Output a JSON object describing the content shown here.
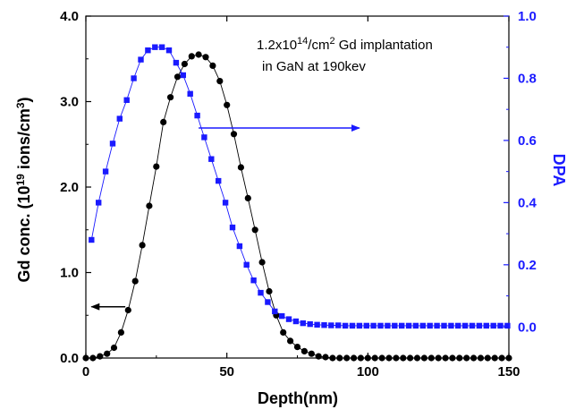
{
  "chart_data": {
    "type": "scatter",
    "annotation": {
      "line1_prefix": "1.2x10",
      "line1_exp": "14",
      "line1_mid": "/cm",
      "line1_exp2": "2",
      "line1_suffix": " Gd implantation",
      "line2": "in GaN at 190kev"
    },
    "xlabel": "Depth(nm)",
    "ylabel_left": {
      "prefix": "Gd conc. (10",
      "exp": "19",
      "mid": " ions/cm",
      "exp2": "3",
      "suffix": ")"
    },
    "ylabel_right": "DPA",
    "xlim": [
      0,
      150
    ],
    "ylim_left": [
      0,
      4
    ],
    "ylim_right": [
      -0.1,
      1.0
    ],
    "x_ticks": [
      "0",
      "50",
      "100",
      "150"
    ],
    "y_left_ticks": [
      "0.0",
      "1.0",
      "2.0",
      "3.0",
      "4.0"
    ],
    "y_right_ticks": [
      "0.0",
      "0.2",
      "0.4",
      "0.6",
      "0.8",
      "1.0"
    ],
    "colors": {
      "gd": "#000000",
      "dpa": "#1a1aff",
      "axis": "#000000",
      "right_axis": "#1a1aff"
    },
    "series": [
      {
        "name": "Gd conc.",
        "axis": "left",
        "marker": "circle",
        "x": [
          0,
          2.5,
          5,
          7.5,
          10,
          12.5,
          15,
          17.5,
          20,
          22.5,
          25,
          27.5,
          30,
          32.5,
          35,
          37.5,
          40,
          42.5,
          45,
          47.5,
          50,
          52.5,
          55,
          57.5,
          60,
          62.5,
          65,
          67.5,
          70,
          72.5,
          75,
          77.5,
          80,
          82.5,
          85,
          87.5,
          90,
          92.5,
          95,
          97.5,
          100,
          102.5,
          105,
          107.5,
          110,
          112.5,
          115,
          117.5,
          120,
          122.5,
          125,
          127.5,
          130,
          132.5,
          135,
          137.5,
          140,
          142.5,
          145,
          147.5,
          150
        ],
        "y": [
          0.0,
          0.0,
          0.02,
          0.05,
          0.12,
          0.3,
          0.56,
          0.9,
          1.32,
          1.78,
          2.24,
          2.76,
          3.05,
          3.29,
          3.44,
          3.53,
          3.55,
          3.52,
          3.42,
          3.24,
          2.96,
          2.62,
          2.23,
          1.87,
          1.5,
          1.12,
          0.78,
          0.5,
          0.3,
          0.2,
          0.13,
          0.08,
          0.05,
          0.02,
          0.01,
          0,
          0,
          0,
          0,
          0,
          0,
          0,
          0,
          0,
          0,
          0,
          0,
          0,
          0,
          0,
          0,
          0,
          0,
          0,
          0,
          0,
          0,
          0,
          0,
          0,
          0
        ]
      },
      {
        "name": "DPA",
        "axis": "right",
        "marker": "square",
        "x": [
          2,
          4.5,
          7,
          9.5,
          12,
          14.5,
          17,
          19.5,
          22,
          24.5,
          27,
          29.5,
          32,
          34.5,
          37,
          39.5,
          42,
          44.5,
          47,
          49.5,
          52,
          54.5,
          57,
          59.5,
          62,
          64.5,
          67,
          69.5,
          72,
          74.5,
          77,
          79.5,
          82,
          84.5,
          87,
          89.5,
          92,
          94.5,
          97,
          99.5,
          102,
          104.5,
          107,
          109.5,
          112,
          114.5,
          117,
          119.5,
          122,
          124.5,
          127,
          129.5,
          132,
          134.5,
          137,
          139.5,
          142,
          144.5,
          147,
          149.5
        ],
        "y": [
          0.28,
          0.4,
          0.5,
          0.59,
          0.67,
          0.73,
          0.8,
          0.86,
          0.89,
          0.9,
          0.9,
          0.89,
          0.85,
          0.81,
          0.75,
          0.68,
          0.61,
          0.54,
          0.47,
          0.4,
          0.32,
          0.26,
          0.2,
          0.15,
          0.11,
          0.08,
          0.05,
          0.035,
          0.025,
          0.018,
          0.012,
          0.009,
          0.007,
          0.006,
          0.005,
          0.005,
          0.004,
          0.004,
          0.004,
          0.004,
          0.004,
          0.004,
          0.004,
          0.004,
          0.004,
          0.004,
          0.004,
          0.004,
          0.004,
          0.004,
          0.004,
          0.004,
          0.004,
          0.004,
          0.004,
          0.004,
          0.004,
          0.004,
          0.004,
          0.004
        ]
      }
    ],
    "arrows": [
      {
        "target": "left",
        "x_from": 14,
        "x_to": 2,
        "y": 0.6
      },
      {
        "target": "right",
        "x_from": 40,
        "x_to": 97,
        "y": 0.64
      }
    ],
    "grid": false,
    "legend": "none"
  }
}
